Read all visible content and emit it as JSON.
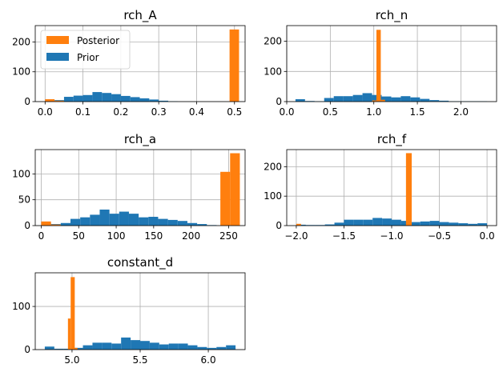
{
  "colors": {
    "prior": "#1f77b4",
    "posterior": "#ff7f0e",
    "grid": "#b0b0b0"
  },
  "legend": {
    "entries": [
      "Posterior",
      "Prior"
    ],
    "placement": "upper-left",
    "panel": "rch_A"
  },
  "chart_data": [
    {
      "type": "bar",
      "title": "rch_A",
      "xlim": [
        -0.026,
        0.528
      ],
      "ylim": [
        0,
        255
      ],
      "xticks": [
        0.0,
        0.1,
        0.2,
        0.3,
        0.4,
        0.5
      ],
      "xtick_labels": [
        "0.0",
        "0.1",
        "0.2",
        "0.3",
        "0.4",
        "0.5"
      ],
      "yticks": [
        0,
        100,
        200
      ],
      "ytick_labels": [
        "0",
        "100",
        "200"
      ],
      "grid": true,
      "series": [
        {
          "name": "Prior",
          "bins": [
            [
              0.0,
              0.025,
              3
            ],
            [
              0.025,
              0.05,
              5
            ],
            [
              0.05,
              0.075,
              16
            ],
            [
              0.075,
              0.1,
              20
            ],
            [
              0.1,
              0.125,
              22
            ],
            [
              0.125,
              0.15,
              32
            ],
            [
              0.15,
              0.175,
              29
            ],
            [
              0.175,
              0.2,
              25
            ],
            [
              0.2,
              0.225,
              19
            ],
            [
              0.225,
              0.25,
              15
            ],
            [
              0.25,
              0.275,
              11
            ],
            [
              0.275,
              0.3,
              7
            ],
            [
              0.3,
              0.325,
              3
            ],
            [
              0.325,
              0.35,
              1
            ]
          ]
        },
        {
          "name": "Posterior",
          "bins": [
            [
              0.0,
              0.025,
              8
            ],
            [
              0.025,
              0.05,
              3
            ],
            [
              0.487,
              0.512,
              242
            ]
          ]
        }
      ]
    },
    {
      "type": "bar",
      "title": "rch_n",
      "xlim": [
        -0.0,
        2.41
      ],
      "ylim": [
        0,
        252
      ],
      "xticks": [
        0.0,
        0.5,
        1.0,
        1.5,
        2.0
      ],
      "xtick_labels": [
        "0.0",
        "0.5",
        "1.0",
        "1.5",
        "2.0"
      ],
      "yticks": [
        0,
        100,
        200
      ],
      "ytick_labels": [
        "0",
        "100",
        "200"
      ],
      "grid": true,
      "series": [
        {
          "name": "Prior",
          "bins": [
            [
              0.1,
              0.21,
              8
            ],
            [
              0.21,
              0.32,
              2
            ],
            [
              0.32,
              0.43,
              1
            ],
            [
              0.43,
              0.54,
              12
            ],
            [
              0.54,
              0.65,
              18
            ],
            [
              0.65,
              0.76,
              18
            ],
            [
              0.76,
              0.87,
              22
            ],
            [
              0.87,
              0.98,
              28
            ],
            [
              0.98,
              1.09,
              22
            ],
            [
              1.09,
              1.2,
              17
            ],
            [
              1.2,
              1.31,
              14
            ],
            [
              1.31,
              1.42,
              18
            ],
            [
              1.42,
              1.53,
              14
            ],
            [
              1.53,
              1.64,
              9
            ],
            [
              1.64,
              1.75,
              5
            ],
            [
              1.75,
              1.86,
              3
            ],
            [
              1.86,
              2.3,
              1
            ]
          ]
        },
        {
          "name": "Posterior",
          "bins": [
            [
              0.98,
              1.03,
              4
            ],
            [
              1.03,
              1.08,
              238
            ],
            [
              1.08,
              1.13,
              6
            ]
          ]
        }
      ]
    },
    {
      "type": "bar",
      "title": "rch_a",
      "xlim": [
        -8,
        272
      ],
      "ylim": [
        0,
        147
      ],
      "xticks": [
        0,
        50,
        100,
        150,
        200,
        250
      ],
      "xtick_labels": [
        "0",
        "50",
        "100",
        "150",
        "200",
        "250"
      ],
      "yticks": [
        0,
        50,
        100
      ],
      "ytick_labels": [
        "0",
        "50",
        "100"
      ],
      "grid": true,
      "series": [
        {
          "name": "Prior",
          "bins": [
            [
              0,
              13,
              5
            ],
            [
              13,
              26,
              3
            ],
            [
              26,
              39,
              5
            ],
            [
              39,
              52,
              13
            ],
            [
              52,
              65,
              16
            ],
            [
              65,
              78,
              21
            ],
            [
              78,
              91,
              31
            ],
            [
              91,
              104,
              23
            ],
            [
              104,
              117,
              27
            ],
            [
              117,
              130,
              23
            ],
            [
              130,
              143,
              16
            ],
            [
              143,
              156,
              17
            ],
            [
              156,
              169,
              13
            ],
            [
              169,
              182,
              11
            ],
            [
              182,
              195,
              9
            ],
            [
              195,
              208,
              5
            ],
            [
              208,
              221,
              3
            ],
            [
              221,
              234,
              1
            ]
          ]
        },
        {
          "name": "Posterior",
          "bins": [
            [
              0,
              13,
              8
            ],
            [
              13,
              26,
              2
            ],
            [
              239,
              252,
              104
            ],
            [
              252,
              265,
              140
            ]
          ]
        }
      ]
    },
    {
      "type": "bar",
      "title": "rch_f",
      "xlim": [
        -2.1,
        0.1
      ],
      "ylim": [
        0,
        258
      ],
      "xticks": [
        -2.0,
        -1.5,
        -1.0,
        -0.5,
        0.0
      ],
      "xtick_labels": [
        "−2.0",
        "−1.5",
        "−1.0",
        "−0.5",
        "0.0"
      ],
      "yticks": [
        0,
        100,
        200
      ],
      "ytick_labels": [
        "0",
        "100",
        "200"
      ],
      "grid": true,
      "series": [
        {
          "name": "Prior",
          "bins": [
            [
              -2.0,
              -1.9,
              3
            ],
            [
              -1.9,
              -1.8,
              2
            ],
            [
              -1.8,
              -1.7,
              2
            ],
            [
              -1.7,
              -1.6,
              4
            ],
            [
              -1.6,
              -1.5,
              10
            ],
            [
              -1.5,
              -1.4,
              20
            ],
            [
              -1.4,
              -1.3,
              20
            ],
            [
              -1.3,
              -1.2,
              20
            ],
            [
              -1.2,
              -1.1,
              26
            ],
            [
              -1.1,
              -1.0,
              24
            ],
            [
              -1.0,
              -0.9,
              20
            ],
            [
              -0.9,
              -0.8,
              16
            ],
            [
              -0.8,
              -0.7,
              12
            ],
            [
              -0.7,
              -0.6,
              14
            ],
            [
              -0.6,
              -0.5,
              16
            ],
            [
              -0.5,
              -0.4,
              12
            ],
            [
              -0.4,
              -0.3,
              10
            ],
            [
              -0.3,
              -0.2,
              8
            ],
            [
              -0.2,
              -0.1,
              6
            ],
            [
              -0.1,
              0.0,
              8
            ]
          ]
        },
        {
          "name": "Posterior",
          "bins": [
            [
              -2.0,
              -1.95,
              6
            ],
            [
              -0.85,
              -0.79,
              246
            ]
          ]
        }
      ]
    },
    {
      "type": "bar",
      "title": "constant_d",
      "xlim": [
        4.73,
        6.27
      ],
      "ylim": [
        0,
        178
      ],
      "xticks": [
        5.0,
        5.5,
        6.0
      ],
      "xtick_labels": [
        "5.0",
        "5.5",
        "6.0"
      ],
      "yticks": [
        0,
        100
      ],
      "ytick_labels": [
        "0",
        "100"
      ],
      "grid": true,
      "series": [
        {
          "name": "Prior",
          "bins": [
            [
              4.8,
              4.87,
              7
            ],
            [
              4.87,
              4.94,
              2
            ],
            [
              4.94,
              5.01,
              2
            ],
            [
              5.01,
              5.08,
              4
            ],
            [
              5.08,
              5.15,
              10
            ],
            [
              5.15,
              5.22,
              16
            ],
            [
              5.22,
              5.29,
              16
            ],
            [
              5.29,
              5.36,
              14
            ],
            [
              5.36,
              5.43,
              28
            ],
            [
              5.43,
              5.5,
              22
            ],
            [
              5.5,
              5.57,
              20
            ],
            [
              5.57,
              5.64,
              16
            ],
            [
              5.64,
              5.71,
              12
            ],
            [
              5.71,
              5.78,
              14
            ],
            [
              5.78,
              5.85,
              14
            ],
            [
              5.85,
              5.92,
              10
            ],
            [
              5.92,
              5.99,
              6
            ],
            [
              5.99,
              6.06,
              4
            ],
            [
              6.06,
              6.13,
              6
            ],
            [
              6.13,
              6.2,
              10
            ]
          ]
        },
        {
          "name": "Posterior",
          "bins": [
            [
              4.97,
              4.99,
              72
            ],
            [
              4.99,
              5.02,
              168
            ],
            [
              5.02,
              5.04,
              4
            ]
          ]
        }
      ]
    }
  ]
}
